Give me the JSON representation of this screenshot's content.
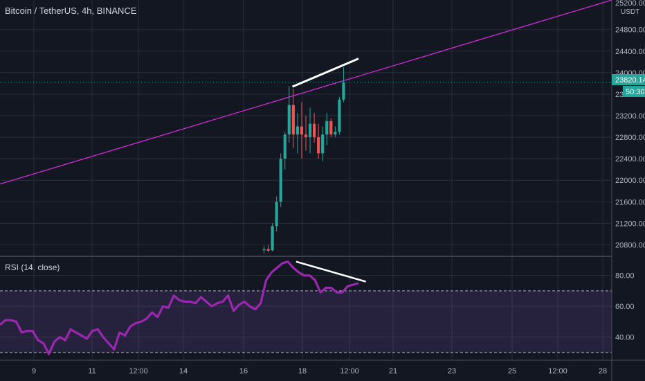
{
  "header": {
    "title": "Bitcoin / TetherUS, 4h, BINANCE"
  },
  "rsi_panel": {
    "title": "RSI (14, close)"
  },
  "price_axis": {
    "unit": "USDT",
    "top_cut_label": "25200.00"
  },
  "badges": {
    "last_price": "23820.14",
    "countdown": "50:30"
  },
  "colors": {
    "background": "#131722",
    "up": "#26a69a",
    "down": "#ef5350",
    "rsi_line": "#9c27b0",
    "trendline": "#d32bd6",
    "divergence": "#ffffff"
  },
  "chart_data": [
    {
      "type": "candlestick",
      "ylim": [
        20600,
        25350
      ],
      "yticks": [
        "20800.00",
        "21200.00",
        "21600.00",
        "22000.00",
        "22400.00",
        "22800.00",
        "23200.00",
        "23600.00",
        "24000.00",
        "24400.00",
        "24800.00"
      ],
      "xticks": [
        "9",
        "11",
        "12:00",
        "14",
        "16",
        "18",
        "12:00",
        "21",
        "23",
        "25",
        "12:00",
        "28"
      ],
      "candles": [
        {
          "o": 20700,
          "h": 20780,
          "l": 20640,
          "c": 20720
        },
        {
          "o": 20720,
          "h": 20800,
          "l": 20660,
          "c": 20690
        },
        {
          "o": 20700,
          "h": 21200,
          "l": 20680,
          "c": 21150
        },
        {
          "o": 21150,
          "h": 21700,
          "l": 21050,
          "c": 21600
        },
        {
          "o": 21600,
          "h": 22500,
          "l": 21500,
          "c": 22400
        },
        {
          "o": 22400,
          "h": 22900,
          "l": 22200,
          "c": 22850
        },
        {
          "o": 22850,
          "h": 23750,
          "l": 22700,
          "c": 23400
        },
        {
          "o": 23400,
          "h": 23700,
          "l": 22600,
          "c": 22850
        },
        {
          "o": 22850,
          "h": 23250,
          "l": 22500,
          "c": 23000
        },
        {
          "o": 23000,
          "h": 23450,
          "l": 22400,
          "c": 22850
        },
        {
          "o": 22850,
          "h": 23200,
          "l": 22550,
          "c": 22800
        },
        {
          "o": 22800,
          "h": 23350,
          "l": 22500,
          "c": 23050
        },
        {
          "o": 23050,
          "h": 23250,
          "l": 22700,
          "c": 22800
        },
        {
          "o": 22800,
          "h": 23050,
          "l": 22400,
          "c": 22500
        },
        {
          "o": 22500,
          "h": 23000,
          "l": 22350,
          "c": 22850
        },
        {
          "o": 22850,
          "h": 23250,
          "l": 22650,
          "c": 23100
        },
        {
          "o": 23100,
          "h": 23150,
          "l": 22800,
          "c": 22850
        },
        {
          "o": 22850,
          "h": 23000,
          "l": 22800,
          "c": 22900
        },
        {
          "o": 22900,
          "h": 23550,
          "l": 22850,
          "c": 23500
        },
        {
          "o": 23500,
          "h": 24100,
          "l": 23450,
          "c": 23820
        }
      ],
      "trendline": {
        "x1": 0,
        "y1": 21930,
        "x2": 100,
        "y2": 25350
      },
      "divergence_price": {
        "x1": 47.8,
        "y1": 23740,
        "x2": 58.6,
        "y2": 24260
      }
    },
    {
      "type": "line",
      "name": "RSI",
      "ylim": [
        25,
        92
      ],
      "yticks": [
        "40.00",
        "60.00",
        "80.00"
      ],
      "band": [
        30,
        70
      ],
      "values": [
        48,
        51,
        51,
        50,
        43,
        44,
        44,
        38,
        36,
        29,
        37,
        40,
        38,
        45,
        43,
        41,
        39,
        44,
        45,
        40,
        36,
        32,
        43,
        41,
        47,
        49,
        50,
        52,
        56,
        53,
        60,
        59,
        67,
        64,
        63,
        63,
        62,
        66,
        63,
        60,
        62,
        63,
        67,
        57,
        61,
        63,
        60,
        58,
        62,
        77,
        82,
        85,
        88,
        89,
        85,
        82,
        80,
        80,
        77,
        69,
        72,
        72,
        69,
        69,
        73,
        74,
        75
      ],
      "divergence_rsi": {
        "x1": 48.4,
        "y1": 89,
        "x2": 59.8,
        "y2": 76
      }
    }
  ]
}
